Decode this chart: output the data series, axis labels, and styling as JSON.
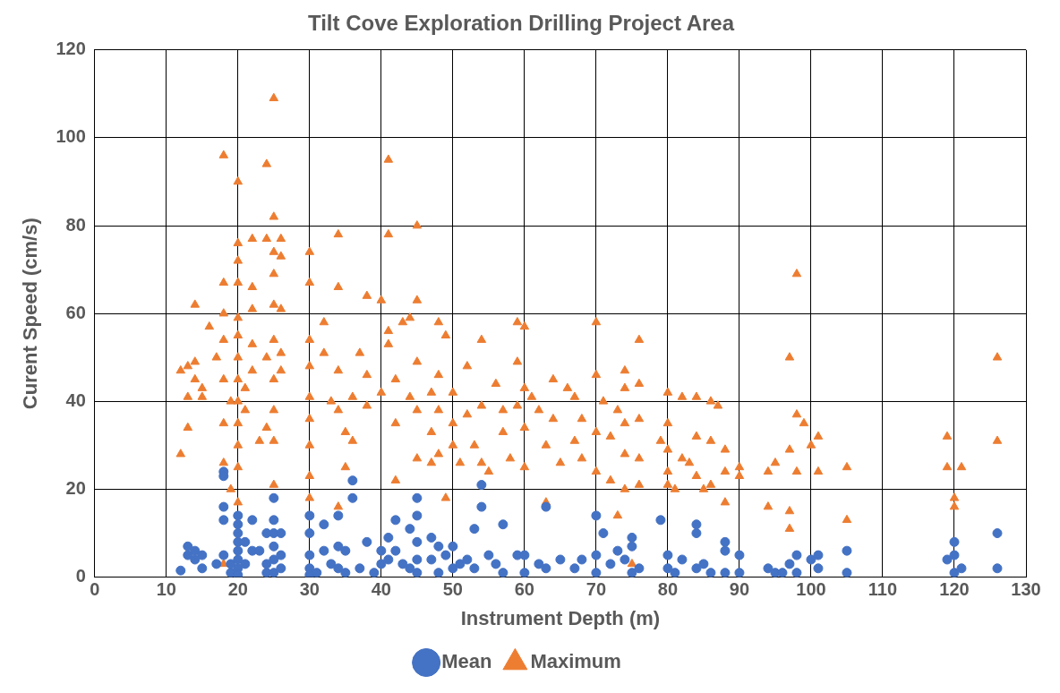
{
  "chart_data": {
    "type": "scatter",
    "title": "Tilt Cove Exploration Drilling Project Area",
    "xlabel": "Instrument Depth (m)",
    "ylabel": "Curent Speed (cm/s)",
    "xlim": [
      0,
      130
    ],
    "xticks": [
      0,
      10,
      20,
      30,
      40,
      50,
      60,
      70,
      80,
      90,
      100,
      110,
      120,
      130
    ],
    "ylim": [
      0,
      120
    ],
    "yticks": [
      0,
      20,
      40,
      60,
      80,
      100,
      120
    ],
    "grid": true,
    "legend": "bottom",
    "series": [
      {
        "name": "Mean",
        "color": "#4472c4",
        "marker": "circle",
        "x": [
          12,
          13,
          13,
          14,
          14,
          15,
          15,
          17,
          18,
          18,
          18,
          18,
          18,
          19,
          19,
          20,
          20,
          20,
          20,
          20,
          20,
          20,
          20,
          21,
          21,
          22,
          22,
          23,
          24,
          24,
          24,
          25,
          25,
          25,
          25,
          25,
          25,
          26,
          26,
          26,
          30,
          30,
          30,
          30,
          30,
          31,
          32,
          32,
          33,
          34,
          34,
          34,
          35,
          35,
          36,
          36,
          37,
          38,
          39,
          40,
          40,
          41,
          41,
          42,
          42,
          43,
          44,
          44,
          45,
          45,
          45,
          45,
          45,
          47,
          47,
          48,
          48,
          49,
          50,
          50,
          51,
          52,
          53,
          53,
          54,
          54,
          55,
          56,
          57,
          57,
          59,
          60,
          60,
          62,
          63,
          63,
          65,
          67,
          68,
          70,
          70,
          70,
          71,
          72,
          73,
          74,
          75,
          75,
          75,
          76,
          79,
          80,
          80,
          81,
          82,
          84,
          84,
          84,
          85,
          86,
          88,
          88,
          88,
          90,
          90,
          94,
          95,
          96,
          97,
          98,
          98,
          100,
          101,
          101,
          105,
          105,
          119,
          120,
          120,
          120,
          121,
          126,
          126
        ],
        "values": [
          1.5,
          7,
          5,
          6,
          4,
          5,
          2,
          3,
          24,
          23,
          16,
          13,
          5,
          3,
          1,
          14,
          12,
          10,
          8,
          6,
          4,
          2,
          0.5,
          8,
          3,
          6,
          13,
          6,
          10,
          3,
          1,
          18,
          13,
          10,
          7,
          4,
          1,
          10,
          5,
          2,
          14,
          10,
          5,
          2,
          0.5,
          1,
          12,
          6,
          3,
          14,
          7,
          2,
          6,
          1,
          22,
          18,
          2,
          8,
          1,
          6,
          3,
          9,
          4,
          13,
          6,
          3,
          11,
          2,
          18,
          14,
          8,
          4,
          1,
          9,
          4,
          7,
          1,
          5,
          7,
          2,
          3,
          4,
          11,
          2,
          21,
          16,
          5,
          3,
          12,
          1,
          5,
          5,
          1,
          3,
          16,
          2,
          4,
          2,
          4,
          14,
          5,
          1,
          10,
          3,
          6,
          4,
          9,
          7,
          1,
          2,
          13,
          5,
          2,
          1,
          4,
          12,
          10,
          2,
          3,
          1,
          8,
          6,
          1,
          5,
          1,
          2,
          1,
          1,
          3,
          5,
          1,
          4,
          5,
          2,
          6,
          1,
          4,
          8,
          5,
          1,
          2,
          10,
          2
        ]
      },
      {
        "name": "Maximum",
        "color": "#ed7d31",
        "marker": "triangle",
        "x": [
          12,
          12,
          13,
          13,
          13,
          14,
          14,
          14,
          15,
          15,
          16,
          17,
          18,
          18,
          18,
          18,
          18,
          18,
          18,
          18,
          19,
          19,
          20,
          20,
          20,
          20,
          20,
          20,
          20,
          20,
          20,
          20,
          20,
          20,
          20,
          21,
          21,
          22,
          22,
          22,
          22,
          22,
          23,
          24,
          24,
          24,
          24,
          25,
          25,
          25,
          25,
          25,
          25,
          25,
          25,
          25,
          25,
          26,
          26,
          26,
          26,
          26,
          30,
          30,
          30,
          30,
          30,
          30,
          30,
          30,
          30,
          32,
          32,
          33,
          34,
          34,
          34,
          34,
          34,
          35,
          35,
          36,
          36,
          37,
          38,
          38,
          38,
          40,
          40,
          41,
          41,
          41,
          41,
          42,
          42,
          42,
          43,
          44,
          44,
          45,
          45,
          45,
          45,
          45,
          47,
          47,
          47,
          48,
          48,
          48,
          48,
          49,
          49,
          50,
          50,
          50,
          51,
          52,
          52,
          53,
          54,
          54,
          54,
          55,
          56,
          57,
          57,
          58,
          59,
          59,
          59,
          60,
          60,
          60,
          60,
          61,
          62,
          63,
          63,
          64,
          64,
          65,
          66,
          67,
          67,
          68,
          68,
          70,
          70,
          70,
          70,
          71,
          72,
          72,
          73,
          73,
          74,
          74,
          74,
          74,
          74,
          75,
          76,
          76,
          76,
          76,
          76,
          79,
          80,
          80,
          80,
          80,
          80,
          81,
          82,
          82,
          83,
          84,
          84,
          84,
          85,
          86,
          86,
          86,
          87,
          88,
          88,
          88,
          90,
          90,
          94,
          94,
          95,
          97,
          97,
          97,
          97,
          98,
          98,
          98,
          99,
          100,
          101,
          101,
          105,
          105,
          119,
          119,
          120,
          120,
          121,
          126,
          126
        ],
        "values": [
          47,
          28,
          48,
          41,
          34,
          62,
          49,
          45,
          43,
          41,
          57,
          50,
          96,
          67,
          60,
          54,
          45,
          35,
          26,
          3,
          40,
          20,
          90,
          76,
          72,
          67,
          59,
          55,
          50,
          45,
          40,
          35,
          30,
          25,
          17,
          43,
          38,
          77,
          66,
          61,
          53,
          47,
          31,
          94,
          77,
          50,
          34,
          109,
          82,
          74,
          69,
          62,
          54,
          45,
          38,
          31,
          21,
          77,
          73,
          61,
          51,
          47,
          74,
          67,
          54,
          48,
          41,
          36,
          30,
          23,
          18,
          58,
          51,
          40,
          78,
          66,
          47,
          38,
          16,
          33,
          25,
          41,
          31,
          51,
          64,
          46,
          39,
          63,
          42,
          95,
          78,
          56,
          53,
          45,
          35,
          22,
          58,
          59,
          41,
          80,
          63,
          49,
          38,
          27,
          42,
          33,
          26,
          58,
          46,
          38,
          28,
          55,
          18,
          42,
          35,
          30,
          26,
          48,
          37,
          30,
          54,
          39,
          26,
          24,
          44,
          38,
          33,
          27,
          58,
          49,
          39,
          57,
          43,
          34,
          25,
          41,
          38,
          30,
          17,
          45,
          36,
          26,
          43,
          41,
          31,
          36,
          27,
          58,
          46,
          33,
          24,
          40,
          32,
          22,
          38,
          14,
          47,
          43,
          35,
          28,
          20,
          3,
          54,
          44,
          36,
          27,
          21,
          31,
          42,
          35,
          29,
          24,
          21,
          20,
          41,
          27,
          26,
          41,
          32,
          23,
          20,
          40,
          31,
          21,
          39,
          29,
          24,
          17,
          25,
          23,
          24,
          16,
          26,
          50,
          29,
          15,
          11,
          69,
          37,
          24,
          35,
          30,
          32,
          24,
          25,
          13,
          32,
          25,
          18,
          16,
          25,
          50,
          31
        ]
      }
    ]
  }
}
